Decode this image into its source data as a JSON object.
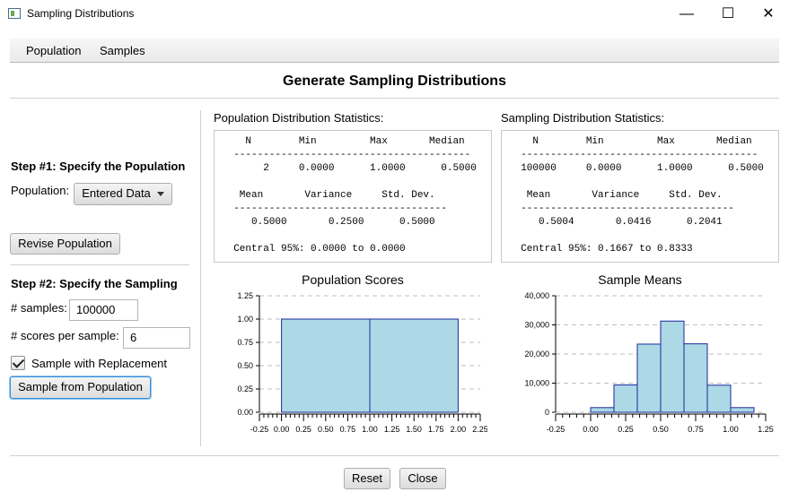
{
  "window": {
    "title": "Sampling Distributions",
    "minimize_glyph": "—",
    "maximize_glyph": "☐",
    "close_glyph": "✕"
  },
  "menu": {
    "items": [
      "Population",
      "Samples"
    ]
  },
  "heading": "Generate Sampling Distributions",
  "step1": {
    "title": "Step #1: Specify the Population",
    "population_label": "Population:",
    "population_value": "Entered Data",
    "revise_button": "Revise Population"
  },
  "step2": {
    "title": "Step #2: Specify the Sampling",
    "samples_label": "# samples:",
    "samples_value": "100000",
    "scores_label": "# scores per sample:",
    "scores_value": "6",
    "replacement_label": "Sample with Replacement",
    "replacement_checked": true,
    "sample_button": "Sample from Population"
  },
  "population_stats": {
    "title": "Population Distribution Statistics:",
    "lines": [
      "    N        Min         Max       Median",
      "  ----------------------------------------",
      "       2     0.0000      1.0000      0.5000",
      "",
      "   Mean       Variance     Std. Dev.",
      "  ------------------------------------",
      "     0.5000       0.2500      0.5000",
      "",
      "  Central 95%: 0.0000 to 0.0000"
    ]
  },
  "sampling_stats": {
    "title": "Sampling Distribution Statistics:",
    "lines": [
      "    N        Min         Max       Median",
      "  ----------------------------------------",
      "  100000     0.0000      1.0000      0.5000",
      "",
      "   Mean       Variance     Std. Dev.",
      "  ------------------------------------",
      "     0.5004       0.0416      0.2041",
      "",
      "  Central 95%: 0.1667 to 0.8333"
    ]
  },
  "charts": [
    {
      "title": "Population Scores",
      "type": "bar",
      "xlim": [
        -0.25,
        2.25
      ],
      "ylim": [
        0,
        1.25
      ],
      "x_ticks": [
        "-0.25",
        "0.00",
        "0.25",
        "0.50",
        "0.75",
        "1.00",
        "1.25",
        "1.50",
        "1.75",
        "2.00",
        "2.25"
      ],
      "y_ticks": [
        "0.00",
        "0.25",
        "0.50",
        "0.75",
        "1.00",
        "1.25"
      ],
      "bins": [
        {
          "from": 0.0,
          "to": 1.0,
          "value": 1.0
        },
        {
          "from": 1.0,
          "to": 2.0,
          "value": 1.0
        }
      ]
    },
    {
      "title": "Sample Means",
      "type": "bar",
      "xlim": [
        -0.25,
        1.25
      ],
      "ylim": [
        0,
        40000
      ],
      "x_ticks": [
        "-0.25",
        "0.00",
        "0.25",
        "0.50",
        "0.75",
        "1.00",
        "1.25"
      ],
      "y_ticks": [
        "0",
        "10,000",
        "20,000",
        "30,000",
        "40,000"
      ],
      "bins": [
        {
          "from": 0.0,
          "to": 0.1667,
          "value": 1600
        },
        {
          "from": 0.1667,
          "to": 0.3333,
          "value": 9400
        },
        {
          "from": 0.3333,
          "to": 0.5,
          "value": 23400
        },
        {
          "from": 0.5,
          "to": 0.6667,
          "value": 31300
        },
        {
          "from": 0.6667,
          "to": 0.8333,
          "value": 23500
        },
        {
          "from": 0.8333,
          "to": 1.0,
          "value": 9300
        },
        {
          "from": 1.0,
          "to": 1.1667,
          "value": 1600
        }
      ]
    }
  ],
  "footer": {
    "reset": "Reset",
    "close": "Close"
  },
  "colors": {
    "bar_fill": "#add8e6",
    "bar_stroke": "#1a2a9a",
    "grid": "#bdbdbd"
  }
}
